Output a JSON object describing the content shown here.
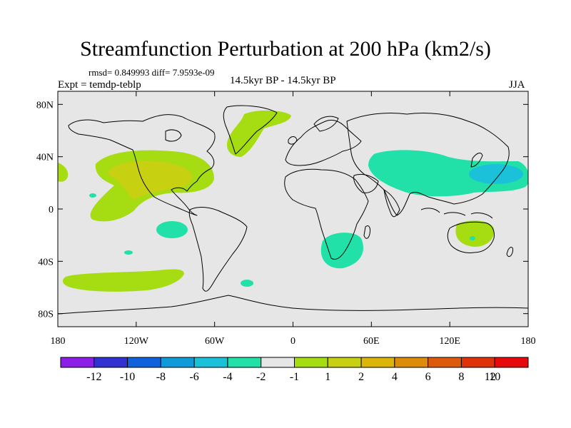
{
  "title": "Streamfunction Perturbation at 200 hPa (km2/s)",
  "stats": "rmsd= 0.849993 diff= 7.9593e-09",
  "left_string": "Expt = temdp-teblp",
  "center_string": "14.5kyr BP - 14.5kyr BP",
  "right_string": "JJA",
  "lat_ticks": [
    {
      "label": "80N",
      "lat": 80
    },
    {
      "label": "40N",
      "lat": 40
    },
    {
      "label": "0",
      "lat": 0
    },
    {
      "label": "40S",
      "lat": -40
    },
    {
      "label": "80S",
      "lat": -80
    }
  ],
  "lon_ticks": [
    {
      "label": "180",
      "lon": -180
    },
    {
      "label": "120W",
      "lon": -120
    },
    {
      "label": "60W",
      "lon": -60
    },
    {
      "label": "0",
      "lon": 0
    },
    {
      "label": "60E",
      "lon": 60
    },
    {
      "label": "120E",
      "lon": 120
    },
    {
      "label": "180",
      "lon": 180
    }
  ],
  "colorbar": {
    "colors": [
      "#8c1ee8",
      "#3232d2",
      "#0f62dc",
      "#119ad8",
      "#1bc1d8",
      "#21e0a8",
      "#e6e6e6",
      "#a6dc12",
      "#c8d012",
      "#dcb40a",
      "#dc8c0a",
      "#dc5a0a",
      "#e0320a",
      "#e80a0a"
    ],
    "labels": [
      "-12",
      "-10",
      "-8",
      "-6",
      "-4",
      "-2",
      "-1",
      "1",
      "2",
      "4",
      "6",
      "8",
      "10",
      "12"
    ]
  },
  "colors": {
    "background_field": "#e6e6e6",
    "pos_1_2": "#a6dc12",
    "pos_2_4": "#c8d012",
    "neg_1_2": "#21e0a8",
    "neg_2_4": "#1bc1d8"
  },
  "map_regions": [
    {
      "name": "north-atlantic-greenland",
      "value_class": "pos_1_2"
    },
    {
      "name": "north-pacific-america",
      "value_class": "pos_1_2"
    },
    {
      "name": "central-america-core",
      "value_class": "pos_2_4"
    },
    {
      "name": "southern-pacific-band",
      "value_class": "pos_1_2"
    },
    {
      "name": "southern-africa-anticyclone",
      "value_class": "neg_1_2"
    },
    {
      "name": "asia-pacific-band",
      "value_class": "neg_1_2"
    },
    {
      "name": "west-pacific-core",
      "value_class": "neg_2_4"
    },
    {
      "name": "australia-anomaly",
      "value_class": "pos_1_2"
    }
  ]
}
